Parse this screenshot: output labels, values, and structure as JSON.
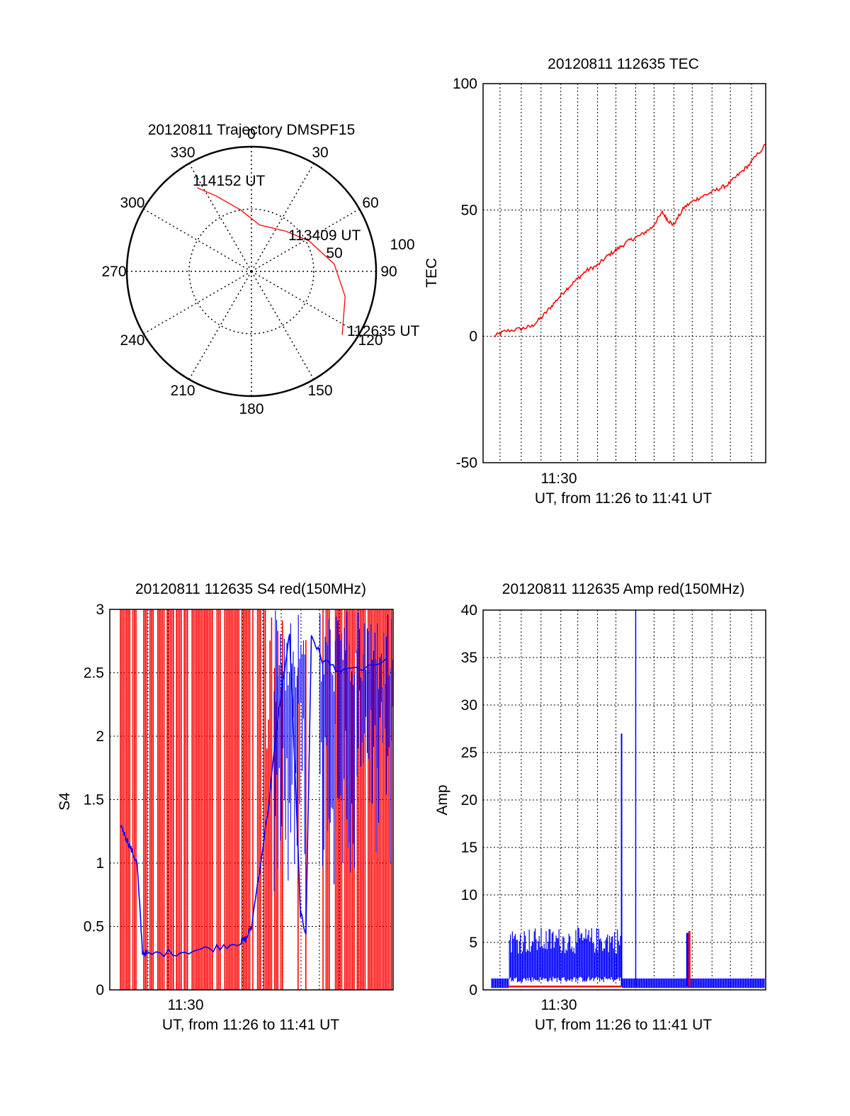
{
  "chart_data": [
    {
      "type": "polar",
      "title": "20120811 Trajectory DMSPF15",
      "angle_labels": [
        "0",
        "30",
        "60",
        "90",
        "120",
        "150",
        "180",
        "210",
        "240",
        "270",
        "300",
        "330"
      ],
      "radial_labels": [
        "50",
        "100"
      ],
      "trajectory_points": [
        {
          "azimuth": 125,
          "elevation": 10
        },
        {
          "azimuth": 105,
          "elevation": 20
        },
        {
          "azimuth": 85,
          "elevation": 30
        },
        {
          "azimuth": 62,
          "elevation": 43
        },
        {
          "azimuth": 40,
          "elevation": 52
        },
        {
          "azimuth": 10,
          "elevation": 56
        },
        {
          "azimuth": -10,
          "elevation": 45
        },
        {
          "azimuth": -25,
          "elevation": 30
        },
        {
          "azimuth": -33,
          "elevation": 18
        }
      ],
      "annotations": [
        {
          "text": "112635 UT",
          "azimuth": 125,
          "elevation": 10
        },
        {
          "text": "113409 UT",
          "azimuth": 62,
          "elevation": 43
        },
        {
          "text": "114152 UT",
          "azimuth": -33,
          "elevation": 18
        }
      ],
      "colors": {
        "trajectory": "#ff0000"
      }
    },
    {
      "type": "line",
      "title": "20120811 112635 TEC",
      "ylabel": "TEC",
      "xlabel": "UT, from 11:26 to 11:41 UT",
      "xlim": [
        11.435,
        11.695
      ],
      "ylim": [
        -50,
        100
      ],
      "yticks": [
        "100",
        "50",
        "0",
        "-50"
      ],
      "xtick_label": "11:30",
      "series": [
        {
          "name": "TEC",
          "color": "#ff0000",
          "x": [
            11.445,
            11.455,
            11.47,
            11.48,
            11.49,
            11.5,
            11.51,
            11.52,
            11.53,
            11.54,
            11.55,
            11.56,
            11.57,
            11.58,
            11.59,
            11.6,
            11.605,
            11.61,
            11.62,
            11.63,
            11.64,
            11.65,
            11.66,
            11.67,
            11.68,
            11.695
          ],
          "y": [
            0,
            2,
            3,
            4,
            8,
            13,
            18,
            22,
            26,
            28,
            32,
            35,
            38,
            40,
            43,
            49,
            46,
            44,
            51,
            54,
            56,
            58,
            60,
            64,
            68,
            76
          ]
        }
      ]
    },
    {
      "type": "line",
      "title": "20120811 112635 S4 red(150MHz)",
      "ylabel": "S4",
      "xlabel": "UT, from 11:26 to 11:41 UT",
      "xlim": [
        11.435,
        11.695
      ],
      "ylim": [
        0,
        3
      ],
      "yticks": [
        "3",
        "2.5",
        "2",
        "1.5",
        "1",
        "0.5",
        "0"
      ],
      "xtick_label": "11:30",
      "series": [
        {
          "name": "red (150 MHz)",
          "color": "#ff0000",
          "note": "saturated oscillation between 0 and 3 over most of the interval; gap near 11:595-11:62"
        },
        {
          "name": "blue",
          "color": "#0000ff",
          "x": [
            11.445,
            11.45,
            11.455,
            11.46,
            11.465,
            11.47,
            11.5,
            11.53,
            11.555,
            11.56,
            11.565,
            11.58,
            11.59,
            11.6,
            11.61,
            11.615,
            11.62,
            11.63,
            11.65,
            11.695
          ],
          "y": [
            1.3,
            1.2,
            1.1,
            1.0,
            0.3,
            0.28,
            0.3,
            0.33,
            0.38,
            0.4,
            0.5,
            1.4,
            2.2,
            2.8,
            0.6,
            0.45,
            2.8,
            2.6,
            2.5,
            2.6
          ]
        }
      ]
    },
    {
      "type": "line",
      "title": "20120811 112635 Amp red(150MHz)",
      "ylabel": "Amp",
      "xlabel": "UT, from 11:26 to 11:41 UT",
      "xlim": [
        11.435,
        11.695
      ],
      "ylim": [
        0,
        40
      ],
      "yticks": [
        "40",
        "35",
        "30",
        "25",
        "20",
        "15",
        "10",
        "5",
        "0"
      ],
      "xtick_label": "11:30",
      "series": [
        {
          "name": "blue",
          "color": "#0000ff",
          "note": "noisy ~3-6 from 11:46 to 11:555, spike 27 near 11:563, spike 40 near 11:575, burst 6 near 11:623, baseline ~0.5 elsewhere"
        },
        {
          "name": "red (150 MHz)",
          "color": "#ff0000",
          "note": "near 0.3 baseline, burst to 6 near 11:623"
        }
      ]
    }
  ]
}
